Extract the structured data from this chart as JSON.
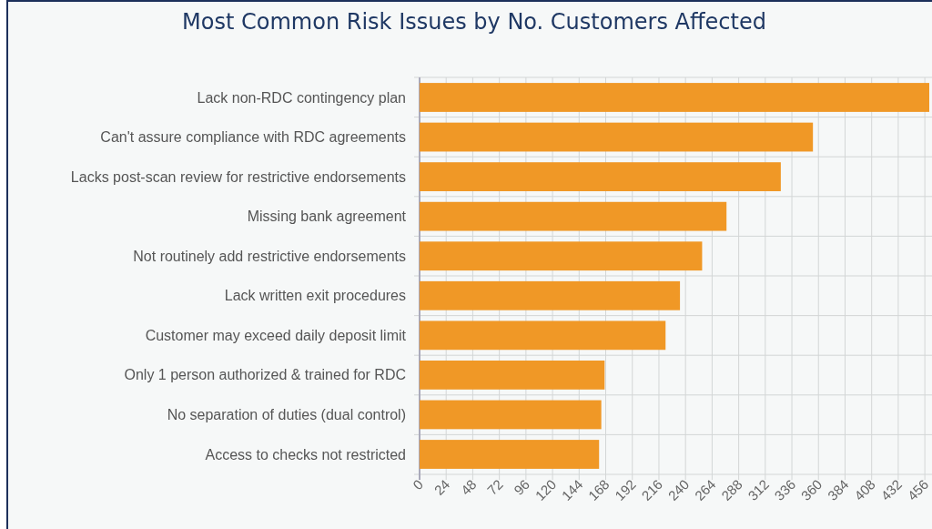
{
  "chart_data": {
    "type": "bar",
    "orientation": "horizontal",
    "title": "Most Common Risk Issues by No. Customers Affected",
    "categories": [
      "Lack non-RDC contingency plan",
      "Can't assure compliance with RDC agreements",
      "Lacks post-scan review for restrictive endorsements",
      "Missing bank agreement",
      "Not routinely add restrictive endorsements",
      "Lack written exit procedures",
      "Customer may exceed daily deposit limit",
      "Only 1 person authorized & trained for RDC",
      "No separation of duties (dual control)",
      "Access to checks not restricted"
    ],
    "values": [
      460,
      355,
      326,
      277,
      255,
      235,
      222,
      167,
      164,
      162
    ],
    "color": "#f09826",
    "xlim": [
      0,
      460
    ],
    "xticks": [
      0,
      24,
      48,
      72,
      96,
      120,
      144,
      168,
      192,
      216,
      240,
      264,
      288,
      312,
      336,
      360,
      384,
      408,
      432,
      456
    ],
    "grid": true
  }
}
